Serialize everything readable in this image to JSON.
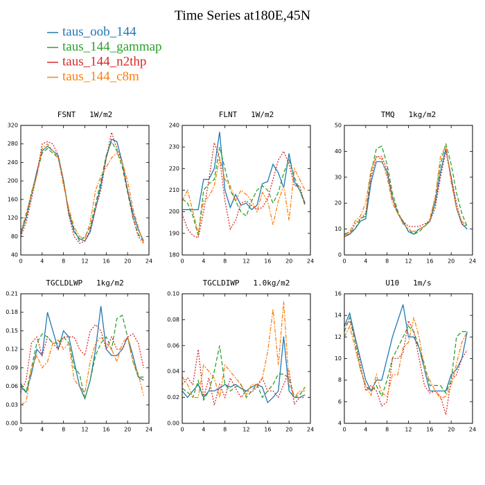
{
  "title": "Time Series at180E,45N",
  "chart_data": [
    {
      "type": "line",
      "title": "FSNT   1W/m2",
      "x": [
        0,
        1,
        2,
        3,
        4,
        5,
        6,
        7,
        8,
        9,
        10,
        11,
        12,
        13,
        14,
        15,
        16,
        17,
        18,
        19,
        20,
        21,
        22,
        23
      ],
      "xlim": [
        0,
        24
      ],
      "xticks": [
        0,
        4,
        8,
        12,
        16,
        20,
        24
      ],
      "ylim": [
        40,
        320
      ],
      "yticks": [
        40,
        80,
        120,
        160,
        200,
        240,
        280,
        320
      ],
      "series": [
        {
          "name": "taus_oob_144",
          "color": "#1f77b4",
          "dash": "solid",
          "values": [
            85,
            120,
            170,
            220,
            265,
            275,
            265,
            255,
            200,
            130,
            90,
            75,
            70,
            90,
            140,
            190,
            250,
            290,
            285,
            240,
            180,
            130,
            95,
            70
          ]
        },
        {
          "name": "taus_144_gammap",
          "color": "#2ca02c",
          "dash": "dashed",
          "values": [
            85,
            125,
            175,
            215,
            260,
            270,
            260,
            250,
            200,
            135,
            95,
            70,
            80,
            100,
            150,
            200,
            255,
            285,
            265,
            230,
            175,
            120,
            85,
            70
          ]
        },
        {
          "name": "taus_144_n2thp",
          "color": "#d62728",
          "dash": "dotted",
          "values": [
            80,
            110,
            160,
            215,
            280,
            285,
            280,
            255,
            200,
            125,
            80,
            65,
            70,
            95,
            140,
            180,
            250,
            305,
            270,
            240,
            180,
            120,
            80,
            65
          ]
        },
        {
          "name": "taus_144_c8m",
          "color": "#ff7f0e",
          "dash": "dashdot",
          "values": [
            90,
            130,
            170,
            210,
            270,
            280,
            265,
            250,
            190,
            140,
            100,
            80,
            75,
            110,
            180,
            210,
            230,
            250,
            260,
            240,
            200,
            140,
            100,
            65
          ]
        }
      ]
    },
    {
      "type": "line",
      "title": "FLNT   1W/m2",
      "x": [
        0,
        1,
        2,
        3,
        4,
        5,
        6,
        7,
        8,
        9,
        10,
        11,
        12,
        13,
        14,
        15,
        16,
        17,
        18,
        19,
        20,
        21,
        22,
        23
      ],
      "xlim": [
        0,
        24
      ],
      "xticks": [
        0,
        4,
        8,
        12,
        16,
        20,
        24
      ],
      "ylim": [
        180,
        240
      ],
      "yticks": [
        180,
        190,
        200,
        210,
        220,
        230,
        240
      ],
      "series": [
        {
          "name": "taus_oob_144",
          "color": "#1f77b4",
          "dash": "solid",
          "values": [
            201,
            201,
            201,
            201,
            215,
            215,
            220,
            237,
            210,
            202,
            208,
            203,
            204,
            201,
            203,
            213,
            214,
            222,
            218,
            211,
            227,
            214,
            210,
            204
          ]
        },
        {
          "name": "taus_144_gammap",
          "color": "#2ca02c",
          "dash": "dashed",
          "values": [
            206,
            204,
            198,
            189,
            210,
            213,
            215,
            230,
            220,
            210,
            205,
            200,
            198,
            205,
            210,
            212,
            210,
            204,
            209,
            218,
            224,
            216,
            210,
            203
          ]
        },
        {
          "name": "taus_144_n2thp",
          "color": "#d62728",
          "dash": "dotted",
          "values": [
            199,
            192,
            189,
            188,
            200,
            215,
            232,
            225,
            205,
            192,
            196,
            204,
            205,
            203,
            201,
            202,
            206,
            215,
            224,
            228,
            222,
            212,
            212,
            203
          ]
        },
        {
          "name": "taus_144_c8m",
          "color": "#ff7f0e",
          "dash": "dashdot",
          "values": [
            205,
            210,
            200,
            190,
            205,
            207,
            212,
            225,
            215,
            212,
            205,
            210,
            208,
            205,
            200,
            209,
            205,
            194,
            205,
            212,
            196,
            220,
            215,
            210
          ]
        }
      ]
    },
    {
      "type": "line",
      "title": "TMQ   1kg/m2",
      "x": [
        0,
        1,
        2,
        3,
        4,
        5,
        6,
        7,
        8,
        9,
        10,
        11,
        12,
        13,
        14,
        15,
        16,
        17,
        18,
        19,
        20,
        21,
        22,
        23
      ],
      "xlim": [
        0,
        24
      ],
      "xticks": [
        0,
        4,
        8,
        12,
        16,
        20,
        24
      ],
      "ylim": [
        0,
        50
      ],
      "yticks": [
        0,
        10,
        20,
        30,
        40,
        50
      ],
      "series": [
        {
          "name": "taus_oob_144",
          "color": "#1f77b4",
          "dash": "solid",
          "values": [
            7,
            8,
            10,
            13,
            14,
            28,
            36,
            36,
            32,
            22,
            16,
            13,
            9,
            8,
            10,
            11,
            13,
            20,
            32,
            41,
            30,
            18,
            12,
            10
          ]
        },
        {
          "name": "taus_144_gammap",
          "color": "#2ca02c",
          "dash": "dashed",
          "values": [
            8,
            9,
            10,
            14,
            15,
            32,
            41,
            42,
            35,
            24,
            17,
            12,
            10,
            8,
            9,
            11,
            13,
            22,
            35,
            43,
            35,
            24,
            16,
            11
          ]
        },
        {
          "name": "taus_144_n2thp",
          "color": "#d62728",
          "dash": "dotted",
          "values": [
            8,
            8,
            12,
            14,
            16,
            30,
            38,
            38,
            33,
            22,
            16,
            13,
            11,
            11,
            11,
            12,
            13,
            18,
            30,
            40,
            30,
            20,
            12,
            11
          ]
        },
        {
          "name": "taus_144_c8m",
          "color": "#ff7f0e",
          "dash": "dashdot",
          "values": [
            7,
            9,
            13,
            15,
            20,
            33,
            38,
            37,
            30,
            20,
            16,
            12,
            10,
            9,
            10,
            11,
            14,
            22,
            38,
            42,
            28,
            18,
            13,
            11
          ]
        }
      ]
    },
    {
      "type": "line",
      "title": "TGCLDLWP   1kg/m2",
      "x": [
        0,
        1,
        2,
        3,
        4,
        5,
        6,
        7,
        8,
        9,
        10,
        11,
        12,
        13,
        14,
        15,
        16,
        17,
        18,
        19,
        20,
        21,
        22,
        23
      ],
      "xlim": [
        0,
        24
      ],
      "xticks": [
        0,
        4,
        8,
        12,
        16,
        20,
        24
      ],
      "ylim": [
        0,
        0.21
      ],
      "yticks": [
        {
          "value": 0,
          "label": "0.00"
        },
        0.03,
        0.06,
        0.09,
        0.12,
        0.15,
        0.18,
        0.21
      ],
      "series": [
        {
          "name": "taus_oob_144",
          "color": "#1f77b4",
          "dash": "solid",
          "values": [
            0.06,
            0.05,
            0.08,
            0.12,
            0.11,
            0.18,
            0.15,
            0.12,
            0.15,
            0.14,
            0.1,
            0.06,
            0.04,
            0.07,
            0.12,
            0.19,
            0.12,
            0.11,
            0.11,
            0.12,
            0.14,
            0.11,
            0.075,
            0.07
          ]
        },
        {
          "name": "taus_144_gammap",
          "color": "#2ca02c",
          "dash": "dashed",
          "values": [
            0.065,
            0.05,
            0.09,
            0.13,
            0.145,
            0.14,
            0.13,
            0.13,
            0.14,
            0.13,
            0.09,
            0.08,
            0.04,
            0.07,
            0.11,
            0.13,
            0.14,
            0.12,
            0.17,
            0.175,
            0.14,
            0.1,
            0.075,
            0.075
          ]
        },
        {
          "name": "taus_144_n2thp",
          "color": "#d62728",
          "dash": "dotted",
          "values": [
            0.05,
            0.07,
            0.13,
            0.14,
            0.11,
            0.14,
            0.13,
            0.12,
            0.14,
            0.14,
            0.14,
            0.12,
            0.11,
            0.15,
            0.16,
            0.15,
            0.12,
            0.14,
            0.12,
            0.12,
            0.14,
            0.145,
            0.13,
            0.09
          ]
        },
        {
          "name": "taus_144_c8m",
          "color": "#ff7f0e",
          "dash": "dashdot",
          "values": [
            0.03,
            0.035,
            0.09,
            0.11,
            0.09,
            0.1,
            0.13,
            0.135,
            0.12,
            0.13,
            0.07,
            0.06,
            0.05,
            0.1,
            0.13,
            0.14,
            0.13,
            0.12,
            0.1,
            0.13,
            0.14,
            0.1,
            0.08,
            0.045
          ]
        }
      ]
    },
    {
      "type": "line",
      "title": "TGCLDIWP   1.0kg/m2",
      "x": [
        0,
        1,
        2,
        3,
        4,
        5,
        6,
        7,
        8,
        9,
        10,
        11,
        12,
        13,
        14,
        15,
        16,
        17,
        18,
        19,
        20,
        21,
        22,
        23
      ],
      "xlim": [
        0,
        24
      ],
      "xticks": [
        0,
        4,
        8,
        12,
        16,
        20,
        24
      ],
      "ylim": [
        0,
        0.1
      ],
      "yticks": [
        {
          "value": 0,
          "label": "0.00"
        },
        0.02,
        0.04,
        0.06,
        0.08,
        {
          "value": 0.1,
          "label": "0.10"
        }
      ],
      "series": [
        {
          "name": "taus_oob_144",
          "color": "#1f77b4",
          "dash": "solid",
          "values": [
            0.025,
            0.02,
            0.025,
            0.03,
            0.02,
            0.025,
            0.025,
            0.027,
            0.03,
            0.028,
            0.03,
            0.027,
            0.025,
            0.028,
            0.03,
            0.028,
            0.016,
            0.02,
            0.025,
            0.067,
            0.025,
            0.02,
            0.02,
            0.022
          ]
        },
        {
          "name": "taus_144_gammap",
          "color": "#2ca02c",
          "dash": "dashed",
          "values": [
            0.027,
            0.024,
            0.02,
            0.033,
            0.018,
            0.025,
            0.04,
            0.06,
            0.03,
            0.025,
            0.028,
            0.03,
            0.02,
            0.025,
            0.03,
            0.02,
            0.025,
            0.03,
            0.038,
            0.038,
            0.035,
            0.02,
            0.022,
            0.028
          ]
        },
        {
          "name": "taus_144_n2thp",
          "color": "#d62728",
          "dash": "dotted",
          "values": [
            0.03,
            0.035,
            0.03,
            0.057,
            0.02,
            0.035,
            0.014,
            0.03,
            0.02,
            0.035,
            0.027,
            0.02,
            0.025,
            0.024,
            0.028,
            0.035,
            0.025,
            0.025,
            0.02,
            0.03,
            0.04,
            0.015,
            0.02,
            0.02
          ]
        },
        {
          "name": "taus_144_c8m",
          "color": "#ff7f0e",
          "dash": "dashdot",
          "values": [
            0.036,
            0.03,
            0.02,
            0.02,
            0.045,
            0.04,
            0.035,
            0.02,
            0.045,
            0.04,
            0.035,
            0.03,
            0.022,
            0.03,
            0.03,
            0.035,
            0.055,
            0.088,
            0.045,
            0.094,
            0.03,
            0.02,
            0.025,
            0.025
          ]
        }
      ]
    },
    {
      "type": "line",
      "title": "U10   1m/s",
      "x": [
        0,
        1,
        2,
        3,
        4,
        5,
        6,
        7,
        8,
        9,
        10,
        11,
        12,
        13,
        14,
        15,
        16,
        17,
        18,
        19,
        20,
        21,
        22,
        23
      ],
      "xlim": [
        0,
        24
      ],
      "xticks": [
        0,
        4,
        8,
        12,
        16,
        20,
        24
      ],
      "ylim": [
        4,
        16
      ],
      "yticks": [
        4,
        6,
        8,
        10,
        12,
        14,
        16
      ],
      "series": [
        {
          "name": "taus_oob_144",
          "color": "#1f77b4",
          "dash": "solid",
          "values": [
            13,
            14.2,
            12,
            10,
            8,
            7,
            8,
            8,
            10,
            12,
            13.5,
            15,
            12,
            12,
            11,
            9,
            7,
            7,
            7,
            7,
            8.5,
            9,
            10,
            12.5
          ]
        },
        {
          "name": "taus_144_gammap",
          "color": "#2ca02c",
          "dash": "dashed",
          "values": [
            12.5,
            13.8,
            11.5,
            9,
            7.5,
            7,
            7.5,
            6.5,
            8,
            10,
            11,
            12,
            13,
            12.5,
            11,
            9.5,
            7.5,
            7.5,
            7.5,
            6.8,
            8,
            12,
            12.5,
            12.5
          ]
        },
        {
          "name": "taus_144_n2thp",
          "color": "#d62728",
          "dash": "dotted",
          "values": [
            13,
            13.5,
            12,
            9.5,
            7,
            7.5,
            7,
            5.6,
            6,
            10,
            10,
            10.5,
            13.5,
            12.5,
            10,
            7.5,
            6.8,
            7,
            6.5,
            4.8,
            8,
            8.5,
            10,
            10.8
          ]
        },
        {
          "name": "taus_144_c8m",
          "color": "#ff7f0e",
          "dash": "dashdot",
          "values": [
            12,
            13,
            11,
            9,
            7.5,
            6.6,
            8.5,
            6.8,
            6.5,
            8.5,
            8.5,
            11,
            11.5,
            13.8,
            12,
            9,
            8,
            7,
            6.3,
            6.5,
            7.5,
            9.5,
            11.5,
            12.5
          ]
        }
      ]
    }
  ]
}
